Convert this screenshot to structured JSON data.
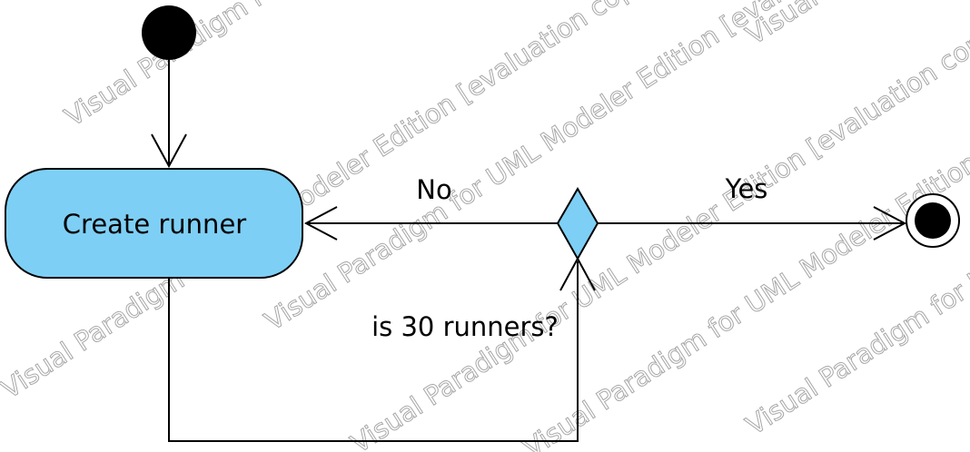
{
  "diagram": {
    "action": {
      "label": "Create runner"
    },
    "decision": {
      "label": "is 30 runners?"
    },
    "guards": {
      "no": "No",
      "yes": "Yes"
    },
    "watermark": "Visual Paradigm for UML Modeler Edition [evaluation copy]"
  },
  "colors": {
    "node_fill": "#7ecff5",
    "stroke": "#000000",
    "watermark": "#8a8a8a"
  }
}
